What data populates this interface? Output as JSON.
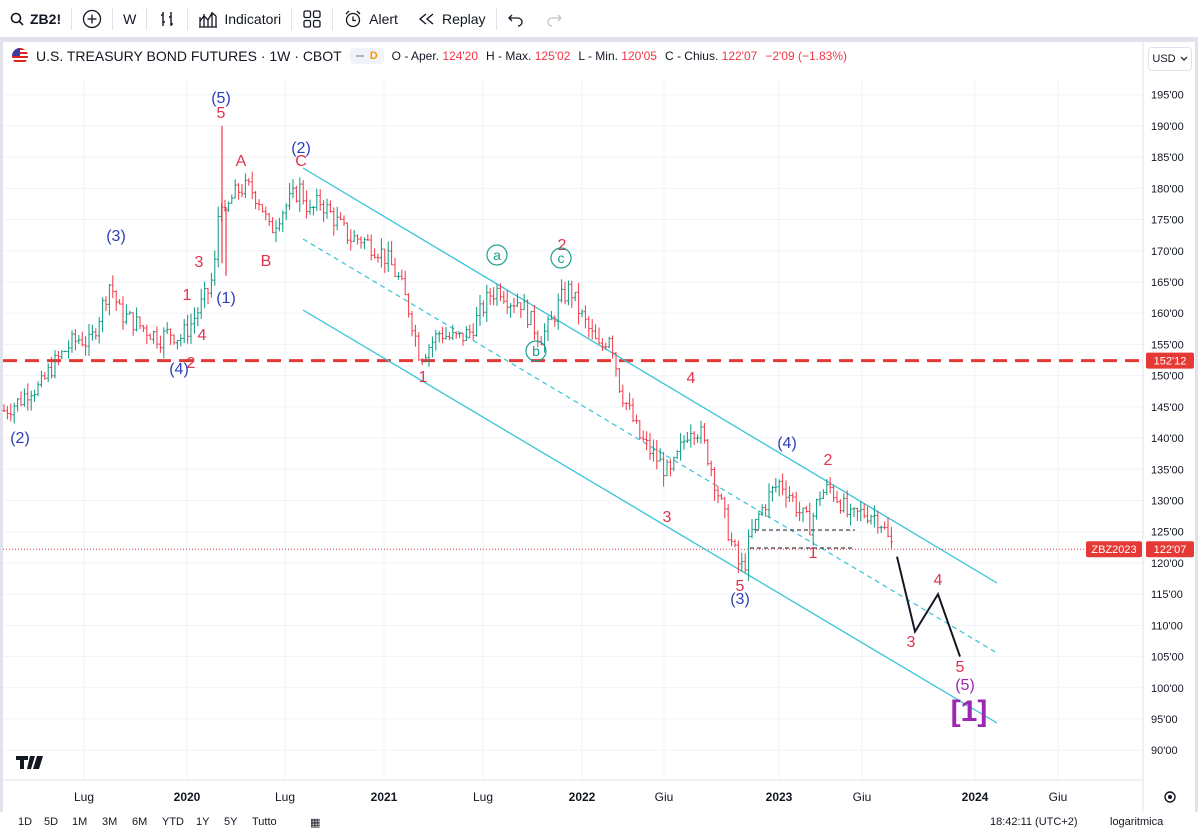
{
  "toolbar": {
    "symbol": "ZB2!",
    "interval": "W",
    "indicators_label": "Indicatori",
    "alert_label": "Alert",
    "replay_label": "Replay"
  },
  "legend": {
    "title": "U.S. TREASURY BOND FUTURES · 1W · CBOT",
    "badge": "D",
    "open_label": "O - Aper.",
    "open": "124'20",
    "high_label": "H - Max.",
    "high": "125'02",
    "low_label": "L - Min.",
    "low": "120'05",
    "close_label": "C - Chius.",
    "close": "122'07",
    "change": "−2'09 (−1.83%)"
  },
  "currency": "USD",
  "colors": {
    "down": "#f23645",
    "up": "#089981",
    "wave_blue": "#2b3fb8",
    "wave_red": "#e0334e",
    "wave_teal": "#1a9e8f",
    "channel": "#35c4d6",
    "purple": "#9c27b0"
  },
  "price_axis": [
    "195'00",
    "190'00",
    "185'00",
    "180'00",
    "175'00",
    "170'00",
    "165'00",
    "160'00",
    "155'00",
    "150'00",
    "145'00",
    "140'00",
    "135'00",
    "130'00",
    "125'00",
    "120'00",
    "115'00",
    "110'00",
    "105'00",
    "100'00",
    "95'00",
    "90'00"
  ],
  "time_axis": [
    "Lug",
    "2020",
    "Lug",
    "2021",
    "Lug",
    "2022",
    "Giu",
    "2023",
    "Giu",
    "2024",
    "Giu"
  ],
  "price_tags": {
    "level_line": "152'12",
    "contract_label": "ZBZ2023",
    "contract_price": "122'07"
  },
  "chart_data": {
    "type": "ohlc-weekly",
    "symbol": "U.S. TREASURY BOND FUTURES",
    "price_range": [
      88,
      198
    ],
    "horizontal_level": 152.4,
    "last_close": 122.2,
    "price_path": [
      [
        0,
        144
      ],
      [
        10,
        145
      ],
      [
        20,
        146
      ],
      [
        30,
        148
      ],
      [
        40,
        148
      ],
      [
        50,
        151
      ],
      [
        60,
        153
      ],
      [
        70,
        155
      ],
      [
        80,
        156
      ],
      [
        90,
        155
      ],
      [
        100,
        160
      ],
      [
        110,
        165
      ],
      [
        120,
        160
      ],
      [
        130,
        159
      ],
      [
        140,
        158
      ],
      [
        150,
        157
      ],
      [
        160,
        156
      ],
      [
        170,
        157
      ],
      [
        180,
        156
      ],
      [
        190,
        158
      ],
      [
        200,
        161
      ],
      [
        210,
        164
      ],
      [
        215,
        168
      ],
      [
        220,
        180
      ],
      [
        225,
        175
      ],
      [
        230,
        178
      ],
      [
        240,
        180
      ],
      [
        250,
        180
      ],
      [
        260,
        178
      ],
      [
        270,
        173
      ],
      [
        280,
        176
      ],
      [
        290,
        178
      ],
      [
        300,
        180
      ],
      [
        310,
        176
      ],
      [
        320,
        178
      ],
      [
        330,
        176
      ],
      [
        340,
        174
      ],
      [
        350,
        172
      ],
      [
        360,
        172
      ],
      [
        370,
        171
      ],
      [
        380,
        170
      ],
      [
        390,
        168
      ],
      [
        400,
        165
      ],
      [
        410,
        160
      ],
      [
        420,
        153
      ],
      [
        430,
        155
      ],
      [
        440,
        157
      ],
      [
        450,
        156
      ],
      [
        460,
        156
      ],
      [
        470,
        157
      ],
      [
        480,
        160
      ],
      [
        490,
        163
      ],
      [
        500,
        164
      ],
      [
        510,
        162
      ],
      [
        520,
        162
      ],
      [
        530,
        159
      ],
      [
        540,
        156
      ],
      [
        550,
        158
      ],
      [
        560,
        162
      ],
      [
        570,
        164
      ],
      [
        580,
        160
      ],
      [
        590,
        157
      ],
      [
        600,
        154
      ],
      [
        610,
        157
      ],
      [
        620,
        148
      ],
      [
        630,
        144
      ],
      [
        640,
        140
      ],
      [
        650,
        138
      ],
      [
        660,
        136
      ],
      [
        670,
        134
      ],
      [
        680,
        138
      ],
      [
        690,
        142
      ],
      [
        700,
        141
      ],
      [
        710,
        136
      ],
      [
        720,
        130
      ],
      [
        730,
        124
      ],
      [
        740,
        119
      ],
      [
        745,
        120
      ],
      [
        750,
        124
      ],
      [
        760,
        128
      ],
      [
        770,
        131
      ],
      [
        780,
        133
      ],
      [
        790,
        131
      ],
      [
        800,
        128
      ],
      [
        810,
        126
      ],
      [
        820,
        131
      ],
      [
        830,
        132
      ],
      [
        840,
        130
      ],
      [
        850,
        127
      ],
      [
        860,
        128
      ],
      [
        870,
        128
      ],
      [
        880,
        127
      ],
      [
        890,
        123
      ]
    ],
    "wave_labels": [
      {
        "text": "(5)",
        "kind": "blue",
        "price": 194
      },
      {
        "text": "5",
        "kind": "red",
        "price": 191
      },
      {
        "text": "A",
        "kind": "red",
        "price": 183
      },
      {
        "text": "(2)",
        "kind": "blue",
        "price": 185
      },
      {
        "text": "C",
        "kind": "red",
        "price": 182
      },
      {
        "text": "(3)",
        "kind": "blue",
        "price": 170
      },
      {
        "text": "3",
        "kind": "red",
        "price": 168
      },
      {
        "text": "B",
        "kind": "red",
        "price": 169
      },
      {
        "text": "1",
        "kind": "red",
        "price": 160
      },
      {
        "text": "(1)",
        "kind": "blue",
        "price": 160
      },
      {
        "text": "4",
        "kind": "red",
        "price": 154
      },
      {
        "text": "(4)",
        "kind": "blue",
        "price": 150
      },
      {
        "text": "2",
        "kind": "red",
        "price": 151
      },
      {
        "text": "(2)",
        "kind": "blue",
        "price": 140
      },
      {
        "text": "a",
        "kind": "teal",
        "price": 169
      },
      {
        "text": "2",
        "kind": "red",
        "price": 170
      },
      {
        "text": "c",
        "kind": "teal",
        "price": 168
      },
      {
        "text": "b",
        "kind": "teal",
        "price": 153
      },
      {
        "text": "1",
        "kind": "red",
        "price": 149
      },
      {
        "text": "4",
        "kind": "red",
        "price": 147
      },
      {
        "text": "(4)",
        "kind": "blue",
        "price": 138
      },
      {
        "text": "2",
        "kind": "red",
        "price": 136
      },
      {
        "text": "3",
        "kind": "red",
        "price": 127
      },
      {
        "text": "1",
        "kind": "red",
        "price": 121
      },
      {
        "text": "5",
        "kind": "red",
        "price": 115
      },
      {
        "text": "(3)",
        "kind": "blue",
        "price": 114
      },
      {
        "text": "4",
        "kind": "red",
        "price": 116
      },
      {
        "text": "3",
        "kind": "red",
        "price": 107
      },
      {
        "text": "5",
        "kind": "red",
        "price": 103
      },
      {
        "text": "(5)",
        "kind": "purple",
        "price": 100
      },
      {
        "text": "[1]",
        "kind": "purple",
        "price": 96
      }
    ],
    "projection": [
      [
        897,
        121
      ],
      [
        915,
        109
      ],
      [
        938,
        115
      ],
      [
        960,
        105
      ]
    ]
  },
  "bottom": {
    "ranges": [
      "1D",
      "5D",
      "1M",
      "3M",
      "6M",
      "YTD",
      "1Y",
      "5Y",
      "Tutto"
    ],
    "time": "18:42:11 (UTC+2)",
    "mode": "logaritmica"
  }
}
